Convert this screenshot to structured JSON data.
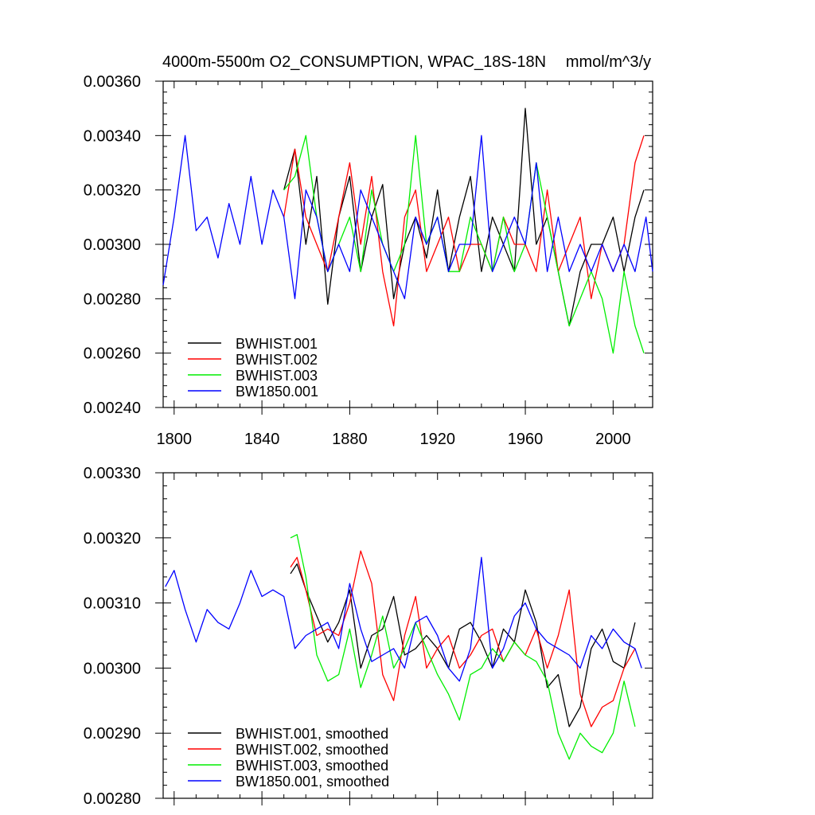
{
  "header": {
    "title": "4000m-5500m O2_CONSUMPTION, WPAC_18S-18N",
    "units": "mmol/m^3/y"
  },
  "chart_data": [
    {
      "type": "line",
      "title": "4000m-5500m O2_CONSUMPTION, WPAC_18S-18N",
      "units": "mmol/m^3/y",
      "xlim": [
        1795,
        2018
      ],
      "ylim": [
        0.0024,
        0.0036
      ],
      "xticks": [
        1800,
        1840,
        1880,
        1920,
        1960,
        2000
      ],
      "yticks": [
        0.0024,
        0.0026,
        0.0028,
        0.003,
        0.0032,
        0.0034,
        0.0036
      ],
      "ytick_labels": [
        "0.00240",
        "0.00260",
        "0.00280",
        "0.00300",
        "0.00320",
        "0.00340",
        "0.00360"
      ],
      "show_xtick_labels": true,
      "grid": false,
      "legend_position": "bottom-left",
      "series": [
        {
          "name": "BWHIST.001",
          "color": "#000000",
          "x": [
            1850,
            1855,
            1860,
            1865,
            1870,
            1875,
            1880,
            1885,
            1890,
            1895,
            1900,
            1905,
            1910,
            1915,
            1920,
            1925,
            1930,
            1935,
            1940,
            1945,
            1950,
            1955,
            1960,
            1965,
            1970,
            1975,
            1980,
            1985,
            1990,
            1995,
            2000,
            2005,
            2010,
            2014
          ],
          "y": [
            0.0032,
            0.00335,
            0.003,
            0.00325,
            0.00278,
            0.0031,
            0.00325,
            0.0029,
            0.0031,
            0.00322,
            0.0028,
            0.003,
            0.0031,
            0.00295,
            0.0032,
            0.0029,
            0.0031,
            0.00325,
            0.0029,
            0.0031,
            0.003,
            0.0029,
            0.0035,
            0.003,
            0.0031,
            0.0029,
            0.0027,
            0.0029,
            0.003,
            0.003,
            0.0031,
            0.0029,
            0.0031,
            0.0032
          ]
        },
        {
          "name": "BWHIST.002",
          "color": "#ff0000",
          "x": [
            1850,
            1855,
            1860,
            1865,
            1870,
            1875,
            1880,
            1885,
            1890,
            1895,
            1900,
            1905,
            1910,
            1915,
            1920,
            1925,
            1930,
            1935,
            1940,
            1945,
            1950,
            1955,
            1960,
            1965,
            1970,
            1975,
            1980,
            1985,
            1990,
            1995,
            2000,
            2005,
            2010,
            2014
          ],
          "y": [
            0.0031,
            0.00335,
            0.0031,
            0.003,
            0.0029,
            0.0031,
            0.0033,
            0.003,
            0.00325,
            0.0029,
            0.0027,
            0.0031,
            0.0032,
            0.0029,
            0.003,
            0.0031,
            0.0029,
            0.003,
            0.003,
            0.0029,
            0.0031,
            0.003,
            0.003,
            0.0029,
            0.0032,
            0.0029,
            0.003,
            0.0031,
            0.0028,
            0.003,
            0.0029,
            0.003,
            0.0033,
            0.0034
          ]
        },
        {
          "name": "BWHIST.003",
          "color": "#00ee00",
          "x": [
            1850,
            1855,
            1860,
            1865,
            1870,
            1875,
            1880,
            1885,
            1890,
            1895,
            1900,
            1905,
            1910,
            1915,
            1920,
            1925,
            1930,
            1935,
            1940,
            1945,
            1950,
            1955,
            1960,
            1965,
            1970,
            1975,
            1980,
            1985,
            1990,
            1995,
            2000,
            2005,
            2010,
            2014
          ],
          "y": [
            0.0032,
            0.00325,
            0.0034,
            0.0031,
            0.0029,
            0.003,
            0.0031,
            0.0029,
            0.0032,
            0.003,
            0.0029,
            0.003,
            0.0034,
            0.003,
            0.0031,
            0.0029,
            0.0029,
            0.0031,
            0.003,
            0.0029,
            0.0031,
            0.0029,
            0.003,
            0.0033,
            0.0031,
            0.0029,
            0.0027,
            0.0028,
            0.0029,
            0.0028,
            0.0026,
            0.0029,
            0.0027,
            0.0026
          ]
        },
        {
          "name": "BW1850.001",
          "color": "#0000ff",
          "x": [
            1795,
            1800,
            1805,
            1810,
            1815,
            1820,
            1825,
            1830,
            1835,
            1840,
            1845,
            1850,
            1855,
            1860,
            1865,
            1870,
            1875,
            1880,
            1885,
            1890,
            1895,
            1900,
            1905,
            1910,
            1915,
            1920,
            1925,
            1930,
            1935,
            1940,
            1945,
            1950,
            1955,
            1960,
            1965,
            1970,
            1975,
            1980,
            1985,
            1990,
            1995,
            2000,
            2005,
            2010,
            2015,
            2018
          ],
          "y": [
            0.00285,
            0.0031,
            0.0034,
            0.00305,
            0.0031,
            0.00295,
            0.00315,
            0.003,
            0.00325,
            0.003,
            0.0032,
            0.0031,
            0.0028,
            0.0032,
            0.0031,
            0.0029,
            0.003,
            0.0029,
            0.0032,
            0.0031,
            0.003,
            0.0029,
            0.0028,
            0.0031,
            0.003,
            0.0031,
            0.0029,
            0.003,
            0.003,
            0.0034,
            0.0029,
            0.003,
            0.0031,
            0.003,
            0.0033,
            0.0029,
            0.0031,
            0.0029,
            0.003,
            0.0029,
            0.003,
            0.0029,
            0.003,
            0.0029,
            0.0031,
            0.0029
          ]
        }
      ]
    },
    {
      "type": "line",
      "xlim": [
        1795,
        2018
      ],
      "ylim": [
        0.0028,
        0.0033
      ],
      "xticks": [
        1800,
        1840,
        1880,
        1920,
        1960,
        2000
      ],
      "yticks": [
        0.0028,
        0.0029,
        0.003,
        0.0031,
        0.0032,
        0.0033
      ],
      "ytick_labels": [
        "0.00280",
        "0.00290",
        "0.00300",
        "0.00310",
        "0.00320",
        "0.00330"
      ],
      "show_xtick_labels": false,
      "grid": false,
      "legend_position": "bottom-left",
      "series": [
        {
          "name": "BWHIST.001, smoothed",
          "color": "#000000",
          "x": [
            1853,
            1856,
            1860,
            1865,
            1870,
            1875,
            1880,
            1885,
            1890,
            1895,
            1900,
            1905,
            1910,
            1915,
            1920,
            1925,
            1930,
            1935,
            1940,
            1945,
            1950,
            1955,
            1960,
            1965,
            1970,
            1975,
            1980,
            1985,
            1990,
            1995,
            2000,
            2005,
            2010
          ],
          "y": [
            0.003145,
            0.00316,
            0.00312,
            0.00308,
            0.00304,
            0.00307,
            0.00312,
            0.003,
            0.00305,
            0.00306,
            0.00311,
            0.00302,
            0.00303,
            0.00305,
            0.00303,
            0.003,
            0.00306,
            0.00307,
            0.00304,
            0.003,
            0.00306,
            0.00304,
            0.00312,
            0.00307,
            0.00297,
            0.00299,
            0.00291,
            0.00294,
            0.00303,
            0.00306,
            0.00301,
            0.003,
            0.00307
          ]
        },
        {
          "name": "BWHIST.002, smoothed",
          "color": "#ff0000",
          "x": [
            1853,
            1856,
            1860,
            1865,
            1870,
            1875,
            1880,
            1885,
            1890,
            1895,
            1900,
            1905,
            1910,
            1915,
            1920,
            1925,
            1930,
            1935,
            1940,
            1945,
            1950,
            1955,
            1960,
            1965,
            1970,
            1975,
            1980,
            1985,
            1990,
            1995,
            2000,
            2005,
            2010
          ],
          "y": [
            0.003155,
            0.00317,
            0.00312,
            0.00305,
            0.00306,
            0.00305,
            0.0031,
            0.00318,
            0.00313,
            0.00299,
            0.00295,
            0.00305,
            0.00311,
            0.003,
            0.00303,
            0.00305,
            0.003,
            0.00302,
            0.00305,
            0.00306,
            0.00301,
            0.00304,
            0.00302,
            0.00306,
            0.003,
            0.00305,
            0.00312,
            0.00296,
            0.00291,
            0.00294,
            0.00295,
            0.003,
            0.00303
          ]
        },
        {
          "name": "BWHIST.003, smoothed",
          "color": "#00ee00",
          "x": [
            1853,
            1856,
            1860,
            1865,
            1870,
            1875,
            1880,
            1885,
            1890,
            1895,
            1900,
            1905,
            1910,
            1915,
            1920,
            1925,
            1930,
            1935,
            1940,
            1945,
            1950,
            1955,
            1960,
            1965,
            1970,
            1975,
            1980,
            1985,
            1990,
            1995,
            2000,
            2005,
            2010
          ],
          "y": [
            0.0032,
            0.003205,
            0.00314,
            0.00302,
            0.00298,
            0.00299,
            0.00306,
            0.00297,
            0.00302,
            0.00308,
            0.003,
            0.00303,
            0.00307,
            0.00303,
            0.00299,
            0.00296,
            0.00292,
            0.00299,
            0.003,
            0.00303,
            0.00301,
            0.00304,
            0.00302,
            0.00301,
            0.00298,
            0.0029,
            0.00286,
            0.0029,
            0.00288,
            0.00287,
            0.0029,
            0.00298,
            0.00291
          ]
        },
        {
          "name": "BW1850.001, smoothed",
          "color": "#0000ff",
          "x": [
            1796,
            1800,
            1805,
            1810,
            1815,
            1820,
            1825,
            1830,
            1835,
            1840,
            1845,
            1850,
            1855,
            1860,
            1865,
            1870,
            1875,
            1880,
            1885,
            1890,
            1895,
            1900,
            1905,
            1910,
            1915,
            1920,
            1925,
            1930,
            1935,
            1940,
            1945,
            1950,
            1955,
            1960,
            1965,
            1970,
            1975,
            1980,
            1985,
            1990,
            1995,
            2000,
            2005,
            2010,
            2013
          ],
          "y": [
            0.003125,
            0.00315,
            0.00309,
            0.00304,
            0.00309,
            0.00307,
            0.00306,
            0.0031,
            0.00315,
            0.00311,
            0.00312,
            0.00311,
            0.00303,
            0.00305,
            0.00306,
            0.00307,
            0.00303,
            0.00313,
            0.00306,
            0.00301,
            0.00302,
            0.00303,
            0.003,
            0.00307,
            0.00308,
            0.00305,
            0.003,
            0.00298,
            0.00303,
            0.00317,
            0.003,
            0.00303,
            0.00308,
            0.0031,
            0.00306,
            0.00304,
            0.00303,
            0.00302,
            0.003,
            0.00305,
            0.00303,
            0.00306,
            0.00304,
            0.00303,
            0.003
          ]
        }
      ]
    }
  ]
}
